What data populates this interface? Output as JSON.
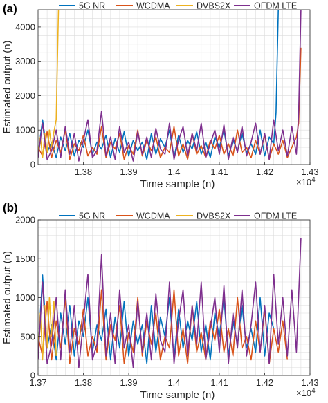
{
  "chart_data": [
    {
      "panel_label": "(a)",
      "type": "line",
      "xlabel": "Time sample (n)",
      "ylabel": "Estimated output (n)",
      "x_exponent_label": "×10",
      "x_exponent_power": "4",
      "xlim": [
        1.37,
        1.43
      ],
      "ylim": [
        0,
        4500
      ],
      "xticks": [
        1.38,
        1.39,
        1.4,
        1.41,
        1.42,
        1.43
      ],
      "xtick_labels": [
        "1.38",
        "1.39",
        "1.4",
        "1.41",
        "1.42",
        "1.43"
      ],
      "yticks": [
        0,
        1000,
        2000,
        3000,
        4000
      ],
      "ytick_labels": [
        "0",
        "1000",
        "2000",
        "3000",
        "4000"
      ],
      "grid": true,
      "legend": "top, horizontal",
      "series": [
        {
          "name": "5G NR",
          "color": "#0072BD",
          "x": [
            1.37,
            1.371,
            1.372,
            1.373,
            1.374,
            1.375,
            1.376,
            1.377,
            1.378,
            1.379,
            1.38,
            1.381,
            1.382,
            1.383,
            1.384,
            1.385,
            1.386,
            1.387,
            1.388,
            1.389,
            1.39,
            1.391,
            1.392,
            1.393,
            1.394,
            1.395,
            1.396,
            1.397,
            1.398,
            1.399,
            1.4,
            1.401,
            1.402,
            1.403,
            1.404,
            1.405,
            1.406,
            1.407,
            1.408,
            1.409,
            1.41,
            1.411,
            1.412,
            1.413,
            1.414,
            1.415,
            1.416,
            1.417,
            1.418,
            1.419,
            1.42,
            1.421,
            1.422,
            1.4225,
            1.423
          ],
          "y": [
            300,
            1300,
            350,
            650,
            200,
            800,
            400,
            900,
            250,
            700,
            500,
            1000,
            300,
            650,
            450,
            850,
            200,
            750,
            350,
            950,
            250,
            700,
            400,
            650,
            150,
            900,
            300,
            750,
            500,
            1000,
            200,
            850,
            350,
            700,
            450,
            950,
            300,
            650,
            200,
            800,
            500,
            1000,
            250,
            700,
            400,
            900,
            350,
            600,
            300,
            1000,
            250,
            800,
            600,
            1500,
            4500
          ]
        },
        {
          "name": "WCDMA",
          "color": "#D95319",
          "x": [
            1.37,
            1.371,
            1.372,
            1.373,
            1.374,
            1.375,
            1.376,
            1.377,
            1.378,
            1.379,
            1.38,
            1.381,
            1.382,
            1.383,
            1.384,
            1.385,
            1.386,
            1.387,
            1.388,
            1.389,
            1.39,
            1.391,
            1.392,
            1.393,
            1.394,
            1.395,
            1.396,
            1.397,
            1.398,
            1.399,
            1.4,
            1.401,
            1.402,
            1.403,
            1.404,
            1.405,
            1.406,
            1.407,
            1.408,
            1.409,
            1.41,
            1.411,
            1.412,
            1.413,
            1.414,
            1.415,
            1.416,
            1.417,
            1.418,
            1.419,
            1.42,
            1.421,
            1.422,
            1.423,
            1.424,
            1.425,
            1.426,
            1.427,
            1.4275,
            1.428
          ],
          "y": [
            500,
            250,
            950,
            200,
            700,
            350,
            1000,
            150,
            600,
            400,
            850,
            250,
            500,
            300,
            1100,
            200,
            650,
            450,
            900,
            150,
            550,
            300,
            1000,
            250,
            700,
            400,
            800,
            200,
            500,
            350,
            1100,
            250,
            600,
            150,
            900,
            300,
            550,
            200,
            700,
            450,
            850,
            300,
            600,
            250,
            1000,
            350,
            500,
            200,
            700,
            300,
            850,
            150,
            600,
            300,
            700,
            200,
            500,
            800,
            1200,
            3400
          ]
        },
        {
          "name": "DVBS2X",
          "color": "#EDB120",
          "x": [
            1.37,
            1.3705,
            1.371,
            1.3715,
            1.372,
            1.3725,
            1.373,
            1.3735,
            1.374,
            1.3745
          ],
          "y": [
            300,
            800,
            200,
            900,
            350,
            1000,
            500,
            950,
            1300,
            4500
          ]
        },
        {
          "name": "OFDM LTE",
          "color": "#7E2F8E",
          "x": [
            1.37,
            1.371,
            1.372,
            1.373,
            1.374,
            1.375,
            1.376,
            1.377,
            1.378,
            1.379,
            1.38,
            1.381,
            1.382,
            1.383,
            1.384,
            1.385,
            1.386,
            1.387,
            1.388,
            1.389,
            1.39,
            1.391,
            1.392,
            1.393,
            1.394,
            1.395,
            1.396,
            1.397,
            1.398,
            1.399,
            1.4,
            1.401,
            1.402,
            1.403,
            1.404,
            1.405,
            1.406,
            1.407,
            1.408,
            1.409,
            1.41,
            1.411,
            1.412,
            1.413,
            1.414,
            1.415,
            1.416,
            1.417,
            1.418,
            1.419,
            1.42,
            1.421,
            1.422,
            1.423,
            1.424,
            1.425,
            1.426,
            1.427,
            1.4275,
            1.428
          ],
          "y": [
            200,
            1200,
            150,
            400,
            1000,
            200,
            1100,
            300,
            900,
            100,
            700,
            1300,
            200,
            400,
            1550,
            250,
            800,
            150,
            1100,
            350,
            650,
            100,
            950,
            300,
            800,
            200,
            1050,
            450,
            300,
            1200,
            150,
            700,
            1100,
            250,
            900,
            400,
            1200,
            200,
            600,
            1000,
            300,
            1150,
            150,
            800,
            350,
            1100,
            250,
            650,
            1200,
            300,
            900,
            150,
            1300,
            400,
            1000,
            250,
            1100,
            300,
            1500,
            4500
          ]
        }
      ]
    },
    {
      "panel_label": "(b)",
      "type": "line",
      "xlabel": "Time sample (n)",
      "ylabel": "Estimated output (n)",
      "x_exponent_label": "×10",
      "x_exponent_power": "4",
      "xlim": [
        1.37,
        1.43
      ],
      "ylim": [
        0,
        2000
      ],
      "xticks": [
        1.37,
        1.38,
        1.39,
        1.4,
        1.41,
        1.42,
        1.43
      ],
      "xtick_labels": [
        "1.37",
        "1.38",
        "1.39",
        "1.4",
        "1.41",
        "1.42",
        "1.43"
      ],
      "yticks": [
        0,
        500,
        1000,
        1500,
        2000
      ],
      "ytick_labels": [
        "0",
        "500",
        "1000",
        "1500",
        "2000"
      ],
      "grid": true,
      "legend": "top, horizontal",
      "series": [
        {
          "name": "5G NR",
          "color": "#0072BD",
          "x": [
            1.37,
            1.371,
            1.372,
            1.373,
            1.374,
            1.375,
            1.376,
            1.377,
            1.378,
            1.379,
            1.38,
            1.381,
            1.382,
            1.383,
            1.384,
            1.385,
            1.386,
            1.387,
            1.388,
            1.389,
            1.39,
            1.391,
            1.392,
            1.393,
            1.394,
            1.395,
            1.396,
            1.397,
            1.398,
            1.399,
            1.4,
            1.401,
            1.402,
            1.403,
            1.404,
            1.405,
            1.406,
            1.407,
            1.408,
            1.409,
            1.41,
            1.411,
            1.412,
            1.413,
            1.414,
            1.415,
            1.416,
            1.417,
            1.418,
            1.419,
            1.42,
            1.421,
            1.422
          ],
          "y": [
            300,
            1290,
            350,
            650,
            200,
            800,
            400,
            900,
            250,
            700,
            500,
            1000,
            300,
            650,
            450,
            850,
            200,
            750,
            350,
            950,
            250,
            700,
            400,
            650,
            150,
            900,
            300,
            750,
            500,
            1000,
            200,
            850,
            350,
            700,
            450,
            950,
            300,
            650,
            200,
            800,
            500,
            1000,
            250,
            700,
            400,
            900,
            350,
            600,
            300,
            1000,
            250,
            800,
            600
          ]
        },
        {
          "name": "WCDMA",
          "color": "#D95319",
          "x": [
            1.37,
            1.371,
            1.372,
            1.373,
            1.374,
            1.375,
            1.376,
            1.377,
            1.378,
            1.379,
            1.38,
            1.381,
            1.382,
            1.383,
            1.384,
            1.385,
            1.386,
            1.387,
            1.388,
            1.389,
            1.39,
            1.391,
            1.392,
            1.393,
            1.394,
            1.395,
            1.396,
            1.397,
            1.398,
            1.399,
            1.4,
            1.401,
            1.402,
            1.403,
            1.404,
            1.405,
            1.406,
            1.407,
            1.408,
            1.409,
            1.41,
            1.411,
            1.412,
            1.413,
            1.414,
            1.415,
            1.416,
            1.417,
            1.418,
            1.419,
            1.42,
            1.421,
            1.422,
            1.423,
            1.424,
            1.425
          ],
          "y": [
            500,
            250,
            950,
            200,
            700,
            350,
            1000,
            150,
            600,
            400,
            850,
            250,
            500,
            300,
            1100,
            200,
            650,
            450,
            900,
            150,
            550,
            300,
            1000,
            250,
            700,
            400,
            800,
            200,
            500,
            350,
            1100,
            250,
            600,
            150,
            900,
            300,
            550,
            200,
            700,
            450,
            850,
            300,
            600,
            250,
            1000,
            350,
            500,
            200,
            700,
            300,
            850,
            150,
            600,
            300,
            700,
            200
          ]
        },
        {
          "name": "DVBS2X",
          "color": "#EDB120",
          "x": [
            1.37,
            1.3705,
            1.371,
            1.3715,
            1.372,
            1.3725,
            1.373,
            1.3735,
            1.374
          ],
          "y": [
            300,
            800,
            200,
            900,
            350,
            1000,
            500,
            950,
            250
          ]
        },
        {
          "name": "OFDM LTE",
          "color": "#7E2F8E",
          "x": [
            1.37,
            1.371,
            1.372,
            1.373,
            1.374,
            1.375,
            1.376,
            1.377,
            1.378,
            1.379,
            1.38,
            1.381,
            1.382,
            1.383,
            1.384,
            1.385,
            1.386,
            1.387,
            1.388,
            1.389,
            1.39,
            1.391,
            1.392,
            1.393,
            1.394,
            1.395,
            1.396,
            1.397,
            1.398,
            1.399,
            1.4,
            1.401,
            1.402,
            1.403,
            1.404,
            1.405,
            1.406,
            1.407,
            1.408,
            1.409,
            1.41,
            1.411,
            1.412,
            1.413,
            1.414,
            1.415,
            1.416,
            1.417,
            1.418,
            1.419,
            1.42,
            1.421,
            1.422,
            1.423,
            1.424,
            1.425,
            1.426,
            1.427,
            1.428
          ],
          "y": [
            200,
            1200,
            150,
            400,
            1000,
            200,
            1100,
            300,
            900,
            100,
            700,
            1300,
            200,
            400,
            1550,
            250,
            800,
            150,
            1100,
            350,
            650,
            100,
            950,
            300,
            800,
            200,
            1050,
            450,
            300,
            1200,
            150,
            700,
            1100,
            250,
            900,
            400,
            1200,
            200,
            600,
            1000,
            300,
            1150,
            150,
            800,
            350,
            1100,
            250,
            650,
            1200,
            300,
            900,
            150,
            1300,
            400,
            1000,
            250,
            1100,
            300,
            1760
          ]
        }
      ]
    }
  ]
}
